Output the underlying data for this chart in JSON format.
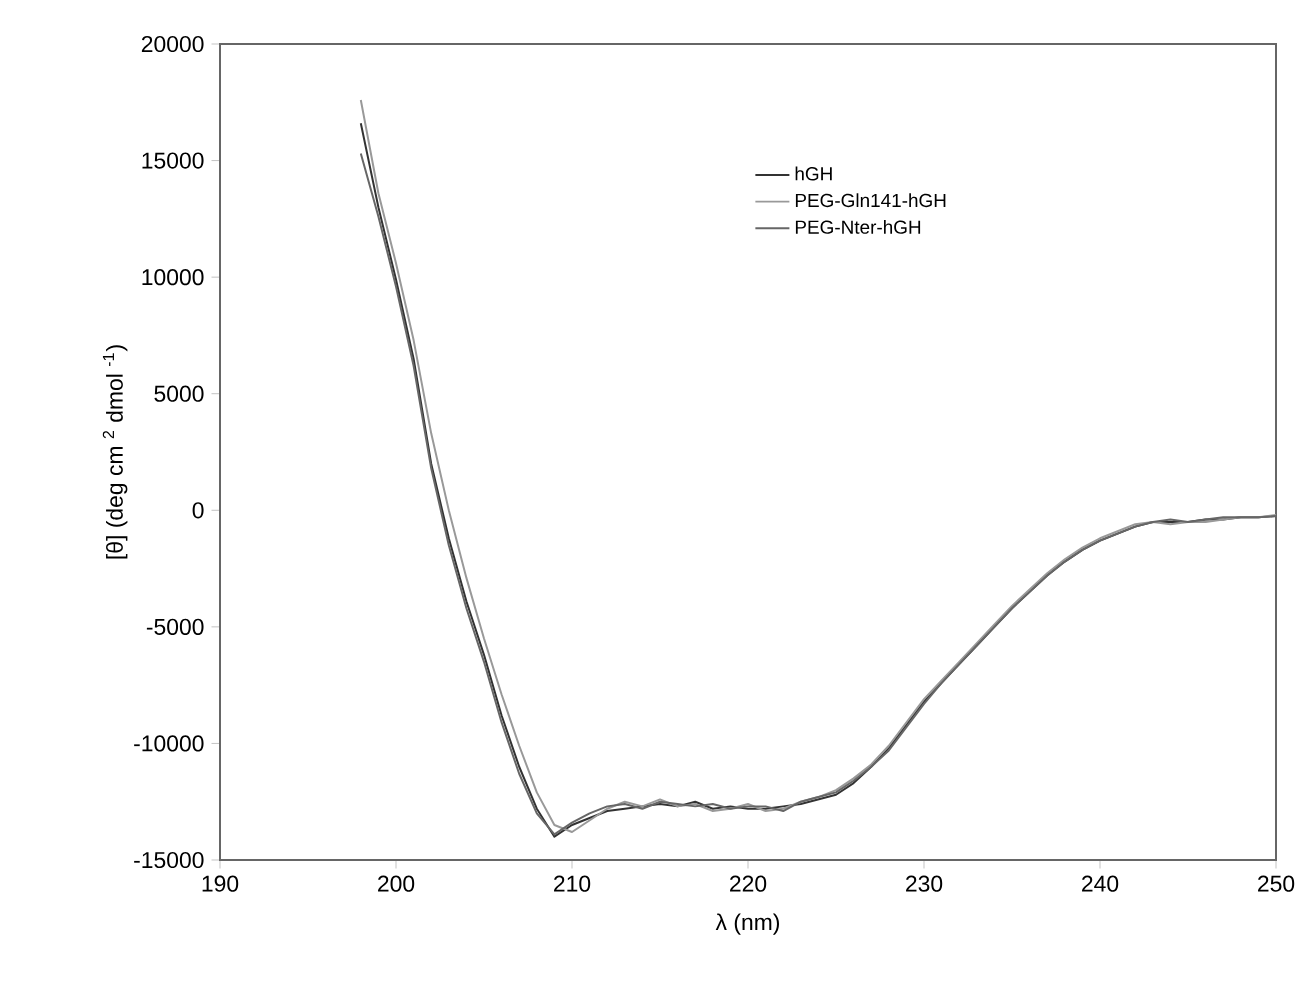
{
  "chart_data": {
    "type": "line",
    "xlabel": "λ (nm)",
    "ylabel": "[θ] (deg cm $^{2}$ dmol $^{-1}$)",
    "x": [
      198,
      199,
      200,
      201,
      202,
      203,
      204,
      205,
      206,
      207,
      208,
      209,
      210,
      211,
      212,
      213,
      214,
      215,
      216,
      217,
      218,
      219,
      220,
      221,
      222,
      223,
      224,
      225,
      226,
      227,
      228,
      229,
      230,
      231,
      232,
      233,
      234,
      235,
      236,
      237,
      238,
      239,
      240,
      241,
      242,
      243,
      244,
      245,
      246,
      247,
      248,
      249,
      250
    ],
    "series": [
      {
        "name": "hGH",
        "color": "#333333",
        "values": [
          16600,
          13000,
          9900,
          6500,
          2000,
          -1200,
          -3900,
          -6200,
          -8800,
          -11000,
          -12800,
          -14000,
          -13500,
          -13200,
          -12900,
          -12800,
          -12700,
          -12600,
          -12700,
          -12500,
          -12800,
          -12700,
          -12800,
          -12800,
          -12700,
          -12600,
          -12400,
          -12200,
          -11700,
          -11000,
          -10200,
          -9200,
          -8200,
          -7400,
          -6600,
          -5800,
          -5000,
          -4200,
          -3500,
          -2800,
          -2200,
          -1700,
          -1300,
          -1000,
          -700,
          -500,
          -500,
          -500,
          -400,
          -400,
          -300,
          -300,
          -250
        ]
      },
      {
        "name": "PEG-Gln141-hGH",
        "color": "#999999",
        "values": [
          17600,
          13600,
          10600,
          7300,
          3300,
          0,
          -2900,
          -5500,
          -7900,
          -10100,
          -12100,
          -13500,
          -13800,
          -13300,
          -12800,
          -12500,
          -12700,
          -12400,
          -12700,
          -12600,
          -12900,
          -12800,
          -12600,
          -12900,
          -12800,
          -12500,
          -12300,
          -12000,
          -11500,
          -10900,
          -10100,
          -9100,
          -8100,
          -7300,
          -6500,
          -5700,
          -4900,
          -4100,
          -3400,
          -2700,
          -2100,
          -1600,
          -1200,
          -900,
          -600,
          -500,
          -600,
          -500,
          -500,
          -400,
          -300,
          -300,
          -200
        ]
      },
      {
        "name": "PEG-Nter-hGH",
        "color": "#666666",
        "values": [
          15300,
          12600,
          9600,
          6200,
          1800,
          -1500,
          -4200,
          -6500,
          -9100,
          -11300,
          -13000,
          -13900,
          -13400,
          -13000,
          -12700,
          -12600,
          -12800,
          -12500,
          -12600,
          -12700,
          -12600,
          -12800,
          -12700,
          -12700,
          -12900,
          -12500,
          -12300,
          -12100,
          -11600,
          -11000,
          -10300,
          -9300,
          -8300,
          -7400,
          -6600,
          -5800,
          -5000,
          -4200,
          -3500,
          -2800,
          -2200,
          -1700,
          -1300,
          -1000,
          -700,
          -500,
          -400,
          -500,
          -400,
          -300,
          -300,
          -300,
          -250
        ]
      }
    ],
    "xlim": [
      190,
      250
    ],
    "ylim": [
      -15000,
      20000
    ],
    "xticks": [
      190,
      200,
      210,
      220,
      230,
      240,
      250
    ],
    "yticks": [
      -15000,
      -10000,
      -5000,
      0,
      5000,
      10000,
      15000,
      20000
    ],
    "grid": false,
    "legend": "top right",
    "marker": "none",
    "line_style": "solid"
  }
}
